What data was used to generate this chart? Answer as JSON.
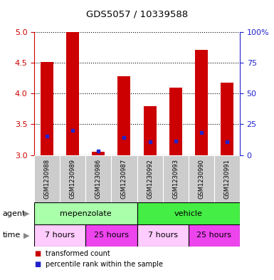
{
  "title": "GDS5057 / 10339588",
  "samples": [
    "GSM1230988",
    "GSM1230989",
    "GSM1230986",
    "GSM1230987",
    "GSM1230992",
    "GSM1230993",
    "GSM1230990",
    "GSM1230991"
  ],
  "transformed_counts": [
    4.52,
    5.0,
    3.05,
    4.28,
    3.8,
    4.1,
    4.72,
    4.18
  ],
  "percentile_ranks": [
    15.5,
    20.0,
    3.0,
    14.5,
    10.5,
    11.5,
    18.5,
    11.0
  ],
  "ylim_left": [
    3.0,
    5.0
  ],
  "ylim_right": [
    0,
    100
  ],
  "yticks_left": [
    3.0,
    3.5,
    4.0,
    4.5,
    5.0
  ],
  "yticks_right": [
    0,
    25,
    50,
    75,
    100
  ],
  "bar_color": "#cc0000",
  "blue_color": "#2222cc",
  "base_value": 3.0,
  "agent_groups": [
    {
      "label": "mepenzolate",
      "start": 0,
      "end": 4,
      "color": "#aaffaa"
    },
    {
      "label": "vehicle",
      "start": 4,
      "end": 8,
      "color": "#44ee44"
    }
  ],
  "time_groups": [
    {
      "label": "7 hours",
      "start": 0,
      "end": 2,
      "color": "#ffccff"
    },
    {
      "label": "25 hours",
      "start": 2,
      "end": 4,
      "color": "#ee44ee"
    },
    {
      "label": "7 hours",
      "start": 4,
      "end": 6,
      "color": "#ffccff"
    },
    {
      "label": "25 hours",
      "start": 6,
      "end": 8,
      "color": "#ee44ee"
    }
  ],
  "legend_items": [
    {
      "label": "transformed count",
      "color": "#cc0000"
    },
    {
      "label": "percentile rank within the sample",
      "color": "#2222cc"
    }
  ],
  "left_tick_color": "#cc0000",
  "right_tick_color": "#2222cc",
  "bar_width": 0.5,
  "sample_bg_color": "#cccccc",
  "arrow_color": "#888888",
  "fig_bg": "#ffffff"
}
